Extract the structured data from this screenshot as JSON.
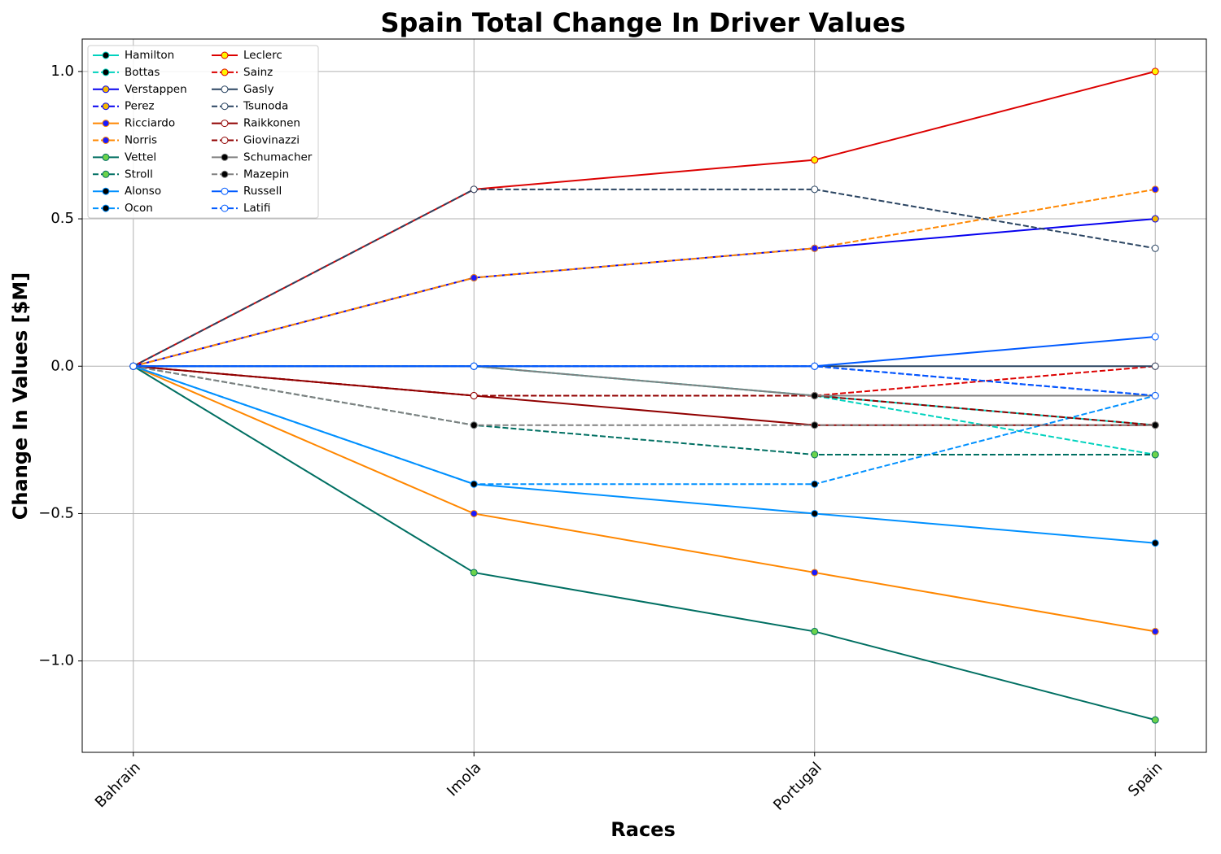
{
  "chart_data": {
    "type": "line",
    "title": "Spain Total Change In Driver Values",
    "xlabel": "Races",
    "ylabel": "Change In Values [$M]",
    "categories": [
      "Bahrain",
      "Imola",
      "Portugal",
      "Spain"
    ],
    "ylim": [
      -1.31,
      1.11
    ],
    "yticks": [
      {
        "value": -1,
        "label": "−1.0"
      },
      {
        "value": -0.5,
        "label": "−0.5"
      },
      {
        "value": 0,
        "label": "0.0"
      },
      {
        "value": 0.5,
        "label": "0.5"
      },
      {
        "value": 1,
        "label": "1.0"
      }
    ],
    "grid": true,
    "legend": "upper left",
    "series": [
      {
        "name": "Hamilton",
        "color": "#00d2be",
        "marker_color": "#000000",
        "linestyle": "solid",
        "values": [
          0,
          0,
          -0.1,
          -0.2
        ]
      },
      {
        "name": "Bottas",
        "color": "#00d2be",
        "marker_color": "#000000",
        "linestyle": "dashed",
        "values": [
          0,
          0,
          -0.1,
          -0.3
        ]
      },
      {
        "name": "Verstappen",
        "color": "#0600ef",
        "marker_color": "#f5b800",
        "linestyle": "solid",
        "values": [
          0,
          0.3,
          0.4,
          0.5
        ]
      },
      {
        "name": "Perez",
        "color": "#0600ef",
        "marker_color": "#f5b800",
        "linestyle": "dashed",
        "values": [
          0,
          0,
          0,
          -0.1
        ]
      },
      {
        "name": "Ricciardo",
        "color": "#ff8700",
        "marker_color": "#1a1aff",
        "linestyle": "solid",
        "values": [
          0,
          -0.5,
          -0.7,
          -0.9
        ]
      },
      {
        "name": "Norris",
        "color": "#ff8700",
        "marker_color": "#1a1aff",
        "linestyle": "dashed",
        "values": [
          0,
          0.3,
          0.4,
          0.6
        ]
      },
      {
        "name": "Vettel",
        "color": "#006f62",
        "marker_color": "#6cd34b",
        "linestyle": "solid",
        "values": [
          0,
          -0.7,
          -0.9,
          -1.2
        ]
      },
      {
        "name": "Stroll",
        "color": "#006f62",
        "marker_color": "#6cd34b",
        "linestyle": "dashed",
        "values": [
          0,
          -0.2,
          -0.3,
          -0.3
        ]
      },
      {
        "name": "Alonso",
        "color": "#0090ff",
        "marker_color": "#000000",
        "linestyle": "solid",
        "values": [
          0,
          -0.4,
          -0.5,
          -0.6
        ]
      },
      {
        "name": "Ocon",
        "color": "#0090ff",
        "marker_color": "#000000",
        "linestyle": "dashed",
        "values": [
          0,
          -0.4,
          -0.4,
          -0.1
        ]
      },
      {
        "name": "Leclerc",
        "color": "#dc0000",
        "marker_color": "#fff500",
        "linestyle": "solid",
        "values": [
          0,
          0.6,
          0.7,
          1.0
        ]
      },
      {
        "name": "Sainz",
        "color": "#dc0000",
        "marker_color": "#fff500",
        "linestyle": "dashed",
        "values": [
          0,
          -0.1,
          -0.1,
          0
        ]
      },
      {
        "name": "Gasly",
        "color": "#2b4562",
        "marker_color": "#ffffff",
        "linestyle": "solid",
        "values": [
          0,
          0,
          0,
          0
        ]
      },
      {
        "name": "Tsunoda",
        "color": "#2b4562",
        "marker_color": "#ffffff",
        "linestyle": "dashed",
        "values": [
          0,
          0.6,
          0.6,
          0.4
        ]
      },
      {
        "name": "Raikkonen",
        "color": "#900000",
        "marker_color": "#ffffff",
        "linestyle": "solid",
        "values": [
          0,
          -0.1,
          -0.2,
          -0.2
        ]
      },
      {
        "name": "Giovinazzi",
        "color": "#900000",
        "marker_color": "#ffffff",
        "linestyle": "dashed",
        "values": [
          0,
          -0.1,
          -0.1,
          -0.2
        ]
      },
      {
        "name": "Schumacher",
        "color": "#808080",
        "marker_color": "#000000",
        "linestyle": "solid",
        "values": [
          0,
          0,
          -0.1,
          -0.1
        ]
      },
      {
        "name": "Mazepin",
        "color": "#808080",
        "marker_color": "#000000",
        "linestyle": "dashed",
        "values": [
          0,
          -0.2,
          -0.2,
          -0.2
        ]
      },
      {
        "name": "Russell",
        "color": "#005aff",
        "marker_color": "#ffffff",
        "linestyle": "solid",
        "values": [
          0,
          0,
          0,
          0.1
        ]
      },
      {
        "name": "Latifi",
        "color": "#005aff",
        "marker_color": "#ffffff",
        "linestyle": "dashed",
        "values": [
          0,
          0,
          0,
          -0.1
        ]
      }
    ]
  }
}
